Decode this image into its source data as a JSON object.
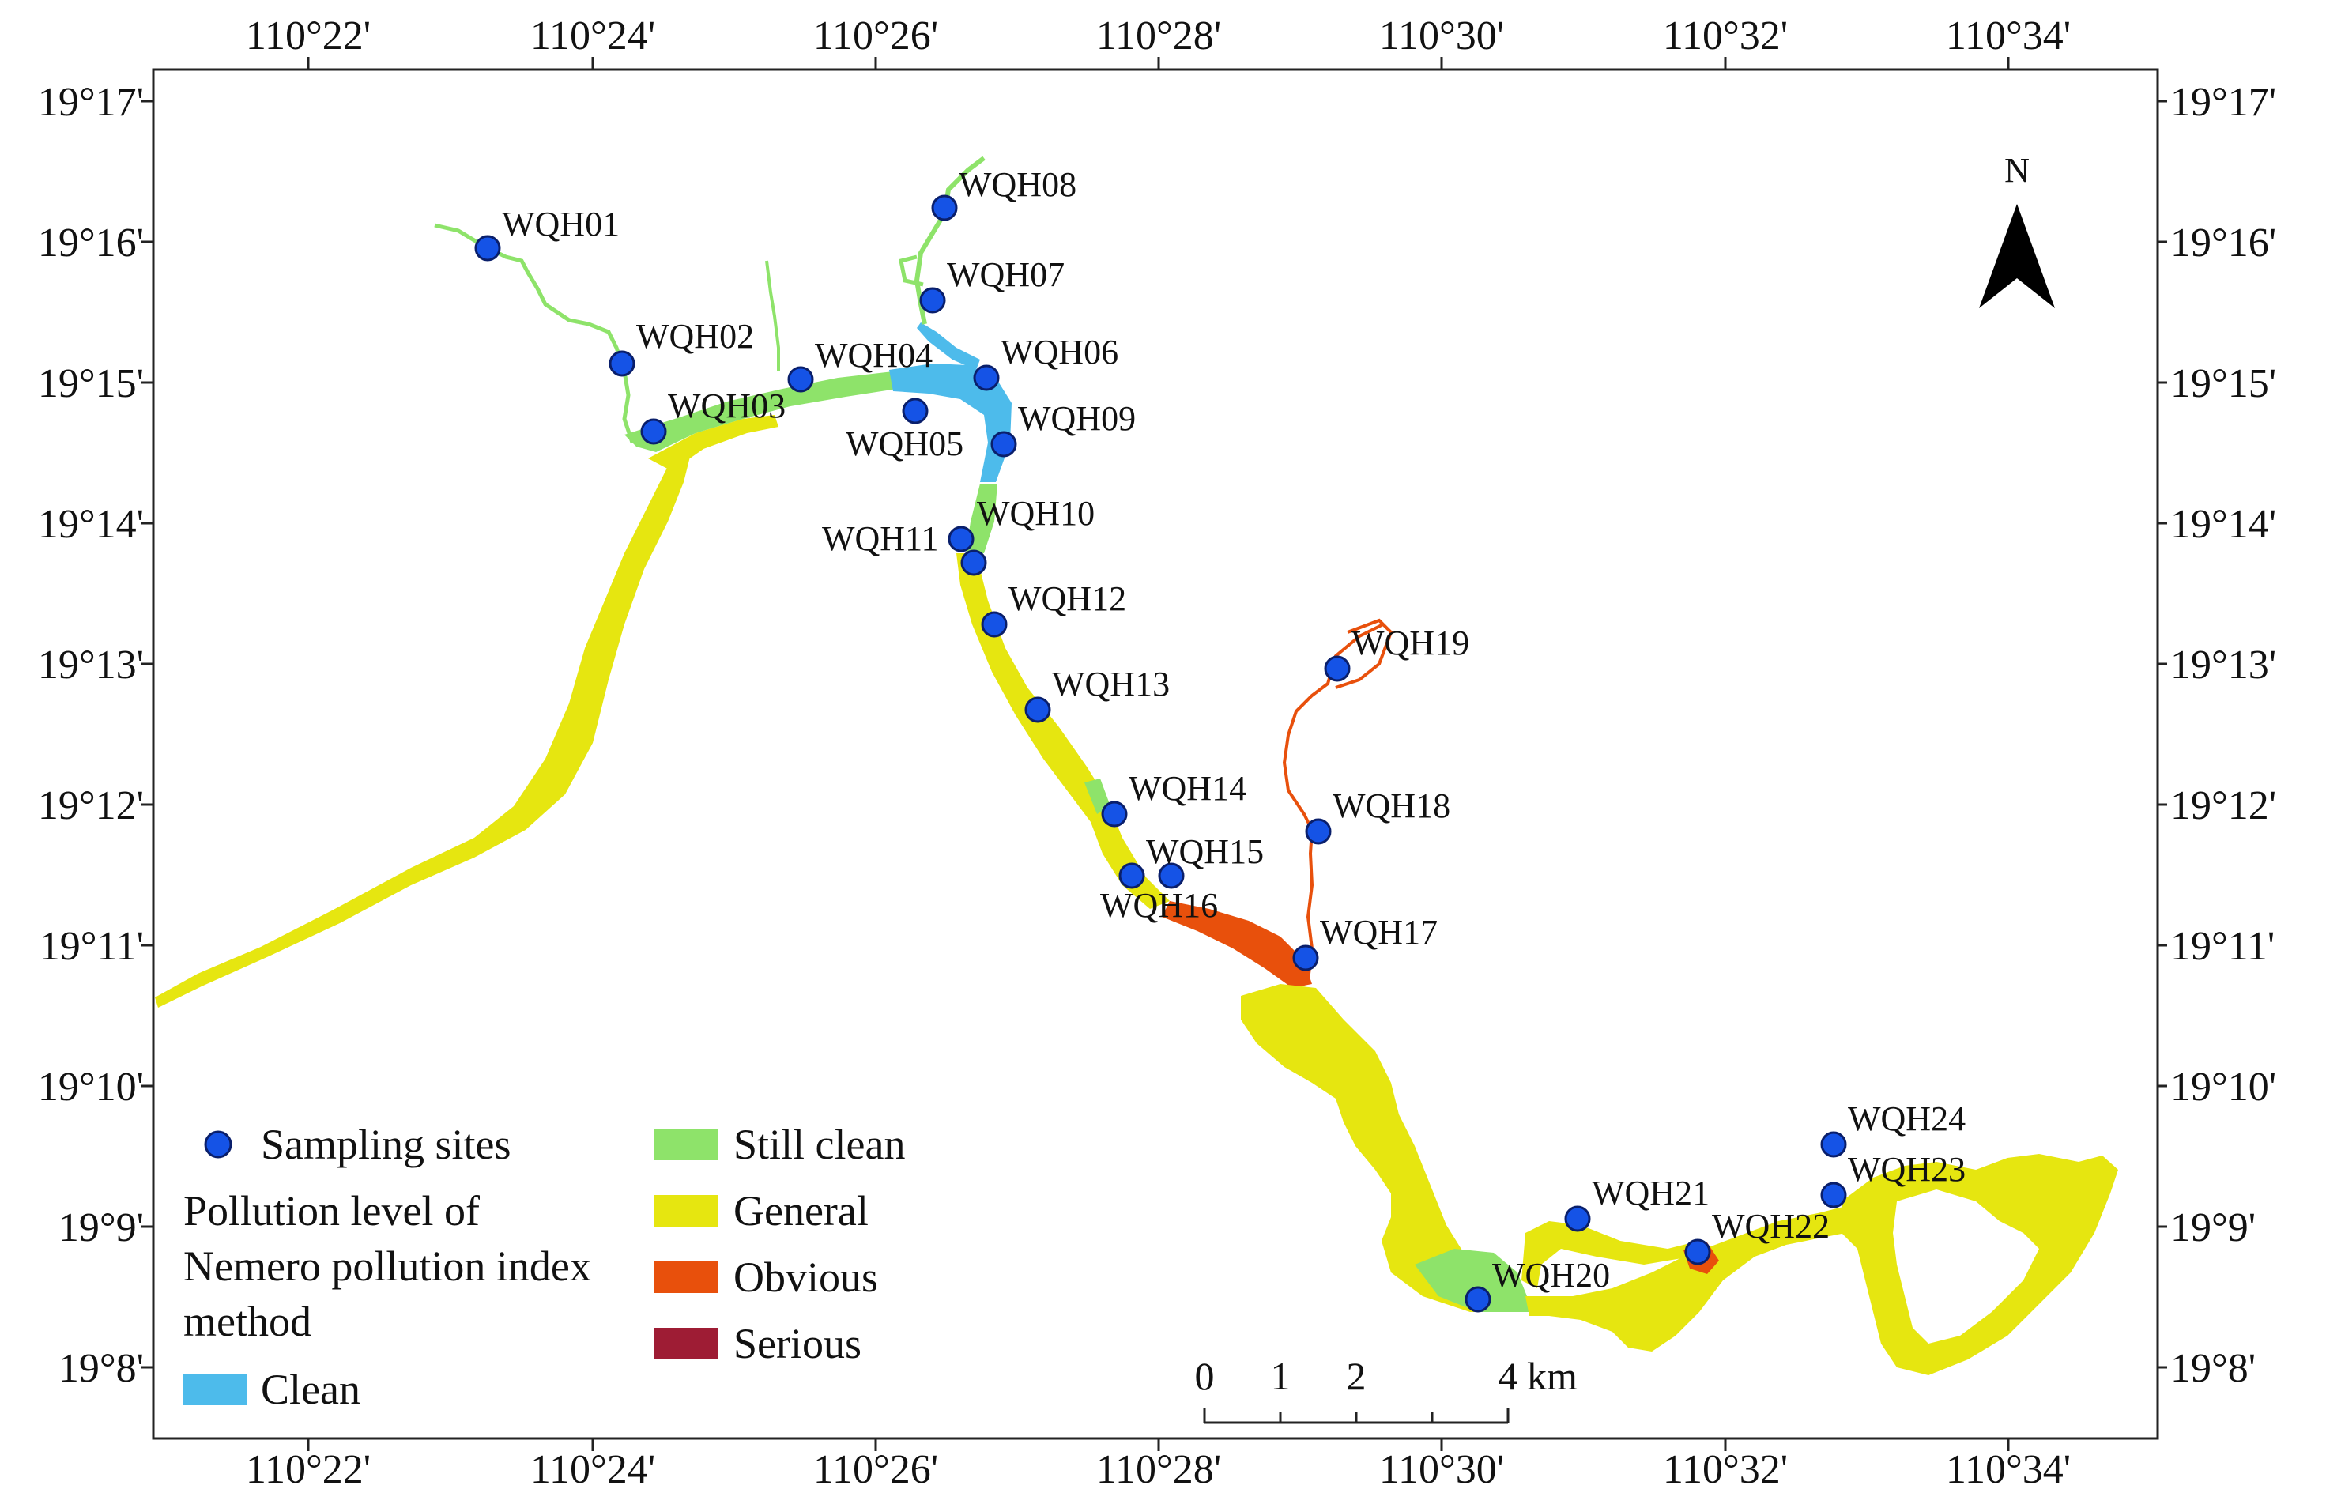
{
  "axes": {
    "longitude_labels": [
      "110°22'",
      "110°24'",
      "110°26'",
      "110°28'",
      "110°30'",
      "110°32'",
      "110°34'"
    ],
    "latitude_labels": [
      "19°17'",
      "19°16'",
      "19°15'",
      "19°14'",
      "19°13'",
      "19°12'",
      "19°11'",
      "19°10'",
      "19°9'",
      "19°8'"
    ]
  },
  "north_arrow": {
    "label": "N"
  },
  "scale_bar": {
    "labels": [
      "0",
      "1",
      "2",
      "4"
    ],
    "unit": "km"
  },
  "legend": {
    "sampling_sites": "Sampling sites",
    "title_lines": [
      "Pollution level of",
      "Nemero pollution index",
      "method"
    ],
    "classes": [
      {
        "label": "Clean",
        "color": "#4dbbeb"
      },
      {
        "label": "Still clean",
        "color": "#8ee36a"
      },
      {
        "label": "General",
        "color": "#e6e610"
      },
      {
        "label": "Obvious",
        "color": "#e8500c"
      },
      {
        "label": "Serious",
        "color": "#9e1c34"
      }
    ]
  },
  "sites": [
    "WQH01",
    "WQH02",
    "WQH03",
    "WQH04",
    "WQH05",
    "WQH06",
    "WQH07",
    "WQH08",
    "WQH09",
    "WQH10",
    "WQH11",
    "WQH12",
    "WQH13",
    "WQH14",
    "WQH15",
    "WQH16",
    "WQH17",
    "WQH18",
    "WQH19",
    "WQH20",
    "WQH21",
    "WQH22",
    "WQH23",
    "WQH24"
  ],
  "colors": {
    "site_marker": "#1553e6",
    "site_outline": "#0a1f6b"
  }
}
